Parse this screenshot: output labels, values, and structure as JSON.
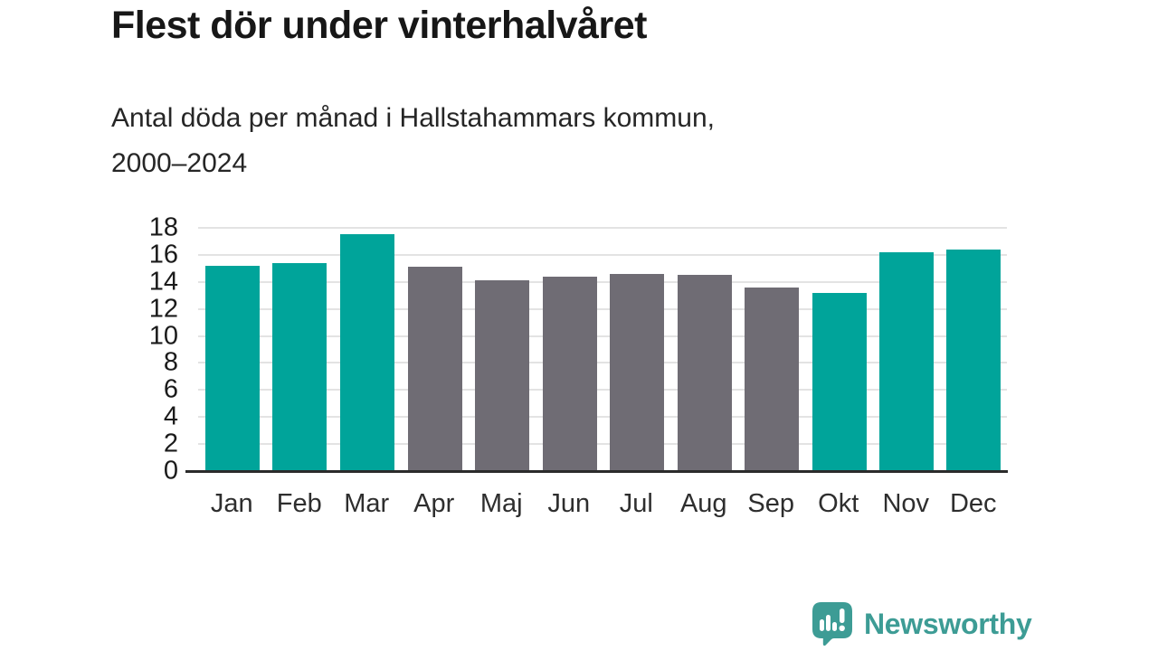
{
  "header": {
    "title": "Flest dör under vinterhalvåret",
    "subtitle_line1": "Antal döda per månad i Hallstahammars kommun,",
    "subtitle_line2": "2000–2024"
  },
  "chart_data": {
    "type": "bar",
    "title": "Flest dör under vinterhalvåret",
    "subtitle": "Antal döda per månad i Hallstahammars kommun, 2000–2024",
    "categories": [
      "Jan",
      "Feb",
      "Mar",
      "Apr",
      "Maj",
      "Jun",
      "Jul",
      "Aug",
      "Sep",
      "Okt",
      "Nov",
      "Dec"
    ],
    "values": [
      15.2,
      15.4,
      17.5,
      15.1,
      14.1,
      14.4,
      14.6,
      14.5,
      13.6,
      13.2,
      16.2,
      16.4
    ],
    "highlighted": [
      true,
      true,
      true,
      false,
      false,
      false,
      false,
      false,
      false,
      true,
      true,
      true
    ],
    "highlight_color": "#00a49a",
    "base_color": "#6f6c74",
    "xlabel": "",
    "ylabel": "",
    "ylim": [
      0,
      18
    ],
    "yticks": [
      0,
      2,
      4,
      6,
      8,
      10,
      12,
      14,
      16,
      18
    ],
    "grid": "horizontal-only",
    "legend": "none"
  },
  "footer": {
    "brand": "Newsworthy",
    "brand_color": "#3d9c95"
  }
}
